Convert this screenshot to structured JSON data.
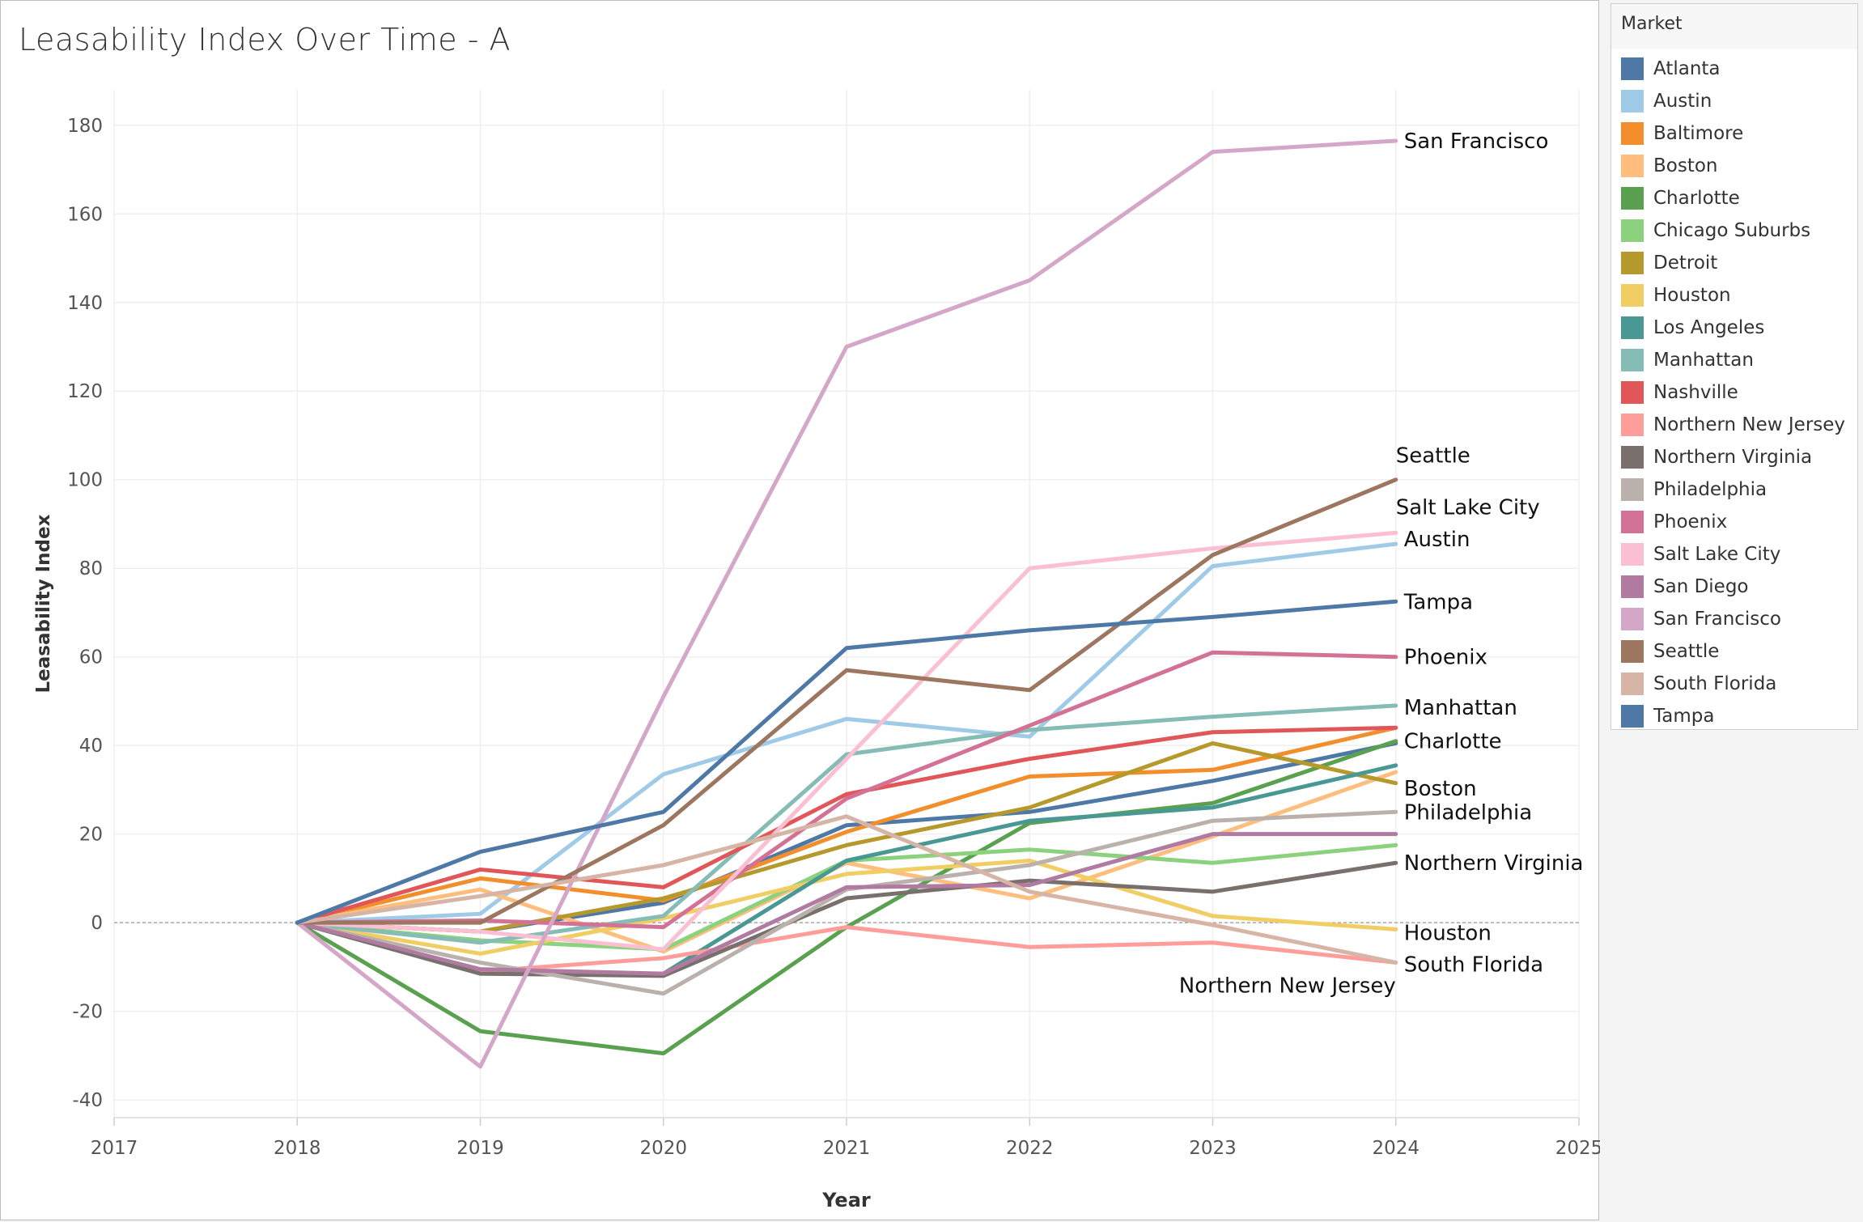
{
  "title": "Leasability Index Over Time - A",
  "legend_title": "Market",
  "chart_data": {
    "type": "line",
    "xlabel": "Year",
    "ylabel": "Leasability Index",
    "xlim": [
      2017,
      2025
    ],
    "ylim": [
      -44,
      188
    ],
    "xticks": [
      2017,
      2018,
      2019,
      2020,
      2021,
      2022,
      2023,
      2024,
      2025
    ],
    "yticks": [
      -40,
      -20,
      0,
      20,
      40,
      60,
      80,
      100,
      120,
      140,
      160,
      180
    ],
    "x": [
      2018,
      2019,
      2020,
      2021,
      2022,
      2023,
      2024
    ],
    "series": [
      {
        "name": "Atlanta",
        "color": "#4e79a7",
        "values": [
          0,
          -2,
          4.5,
          22,
          25,
          32,
          40.5
        ]
      },
      {
        "name": "Austin",
        "color": "#a0cbe8",
        "values": [
          0,
          2,
          33.5,
          46,
          42,
          80.5,
          85.5
        ],
        "end_label": "Austin"
      },
      {
        "name": "Baltimore",
        "color": "#f28e2b",
        "values": [
          0,
          10,
          5,
          20.5,
          33,
          34.5,
          44
        ]
      },
      {
        "name": "Boston",
        "color": "#ffbe7d",
        "values": [
          0,
          7.5,
          -6.5,
          13.5,
          5.5,
          19.5,
          34
        ],
        "end_label": "Boston"
      },
      {
        "name": "Charlotte",
        "color": "#59a14f",
        "values": [
          0,
          -24.5,
          -29.5,
          -1,
          22.5,
          27,
          41
        ],
        "end_label": "Charlotte"
      },
      {
        "name": "Chicago Suburbs",
        "color": "#8cd17d",
        "values": [
          0,
          -4,
          -6,
          14,
          16.5,
          13.5,
          17.5
        ]
      },
      {
        "name": "Detroit",
        "color": "#b6992d",
        "values": [
          0,
          -2,
          5.5,
          17.5,
          26,
          40.5,
          31.5
        ]
      },
      {
        "name": "Houston",
        "color": "#f1ce63",
        "values": [
          0,
          -7,
          1,
          11,
          14,
          1.5,
          -1.5
        ],
        "end_label": "Houston"
      },
      {
        "name": "Los Angeles",
        "color": "#499894",
        "values": [
          0,
          -11.5,
          -11.5,
          14,
          23,
          26,
          35.5
        ]
      },
      {
        "name": "Manhattan",
        "color": "#86bcb6",
        "values": [
          0,
          -4.5,
          1.5,
          38,
          43.5,
          46.5,
          49
        ],
        "end_label": "Manhattan"
      },
      {
        "name": "Nashville",
        "color": "#e15759",
        "values": [
          0,
          12,
          8,
          29,
          37,
          43,
          44
        ]
      },
      {
        "name": "Northern New Jersey",
        "color": "#ff9d9a",
        "values": [
          0,
          -11,
          -8,
          -1,
          -5.5,
          -4.5,
          -9
        ],
        "end_label": "Northern New Jersey"
      },
      {
        "name": "Northern Virginia",
        "color": "#79706e",
        "values": [
          0,
          -11.5,
          -12,
          5.5,
          9.5,
          7,
          13.5
        ],
        "end_label": "Northern Virginia"
      },
      {
        "name": "Philadelphia",
        "color": "#bab0ac",
        "values": [
          0,
          -9,
          -16,
          7.5,
          13,
          23,
          25
        ],
        "end_label": "Philadelphia"
      },
      {
        "name": "Phoenix",
        "color": "#d37295",
        "values": [
          0,
          0.5,
          -1,
          28,
          44.5,
          61,
          60
        ],
        "end_label": "Phoenix"
      },
      {
        "name": "Salt Lake City",
        "color": "#fabfd2",
        "values": [
          0,
          -2,
          -6,
          37,
          80,
          84.5,
          88
        ],
        "end_label": "Salt Lake City"
      },
      {
        "name": "San Diego",
        "color": "#b07aa1",
        "values": [
          0,
          -10.5,
          -11.5,
          8,
          8.5,
          20,
          20
        ]
      },
      {
        "name": "San Francisco",
        "color": "#d4a6c8",
        "values": [
          0,
          -32.5,
          51,
          130,
          145,
          174,
          176.5
        ],
        "end_label": "San Francisco"
      },
      {
        "name": "Seattle",
        "color": "#9d7660",
        "values": [
          0,
          0,
          22,
          57,
          52.5,
          83,
          100
        ],
        "end_label": "Seattle"
      },
      {
        "name": "South Florida",
        "color": "#d7b5a6",
        "values": [
          0,
          6,
          13,
          24,
          7,
          -0.5,
          -9
        ],
        "end_label": "South Florida"
      },
      {
        "name": "Tampa",
        "color": "#4e79a7",
        "values": [
          0,
          16,
          25,
          62,
          66,
          69,
          72.5
        ],
        "end_label": "Tampa"
      }
    ]
  }
}
